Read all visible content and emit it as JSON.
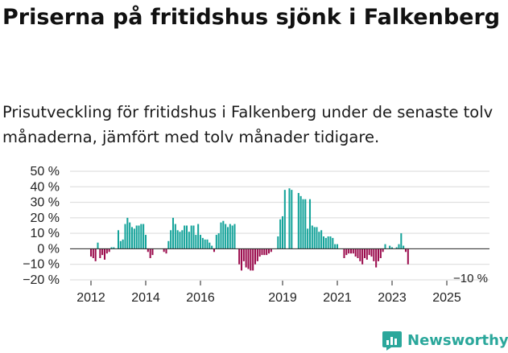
{
  "title": "Priserna på fritidshus sjönk i Falkenberg",
  "subtitle": "Prisutveckling för fritidshus i Falkenberg under de senaste tolv månaderna, jämfört med tolv månader tidigare.",
  "brand": {
    "name": "Newsworthy",
    "color": "#2aa79b"
  },
  "colors": {
    "positive": "#14a39a",
    "negative": "#9b0c4d",
    "grid": "#d9d9d9",
    "axis": "#222222"
  },
  "chart_data": {
    "type": "bar",
    "title": "Priserna på fritidshus sjönk i Falkenberg",
    "xlabel": "",
    "ylabel": "",
    "ylim": [
      -20,
      50
    ],
    "y_ticks": [
      {
        "value": 50,
        "label": "50 %"
      },
      {
        "value": 40,
        "label": "40 %"
      },
      {
        "value": 30,
        "label": "30 %"
      },
      {
        "value": 20,
        "label": "20 %"
      },
      {
        "value": 10,
        "label": "10 %"
      },
      {
        "value": 0,
        "label": "0 %"
      },
      {
        "value": -10,
        "label": "−10 %"
      },
      {
        "value": -20,
        "label": "−20 %"
      }
    ],
    "x_ticks": [
      "2012",
      "2014",
      "2016",
      "2019",
      "2021",
      "2023",
      "2025"
    ],
    "x_tick_positions": [
      2012,
      2014,
      2016,
      2019,
      2021,
      2023,
      2025
    ],
    "x_start": 2012,
    "x_step": 0.08333,
    "annotation": {
      "label": "−10 %",
      "value": -10
    },
    "values": [
      -5,
      -6,
      -8,
      4,
      -6,
      -4,
      -7,
      -3,
      -2,
      1,
      1,
      0,
      12,
      5,
      6,
      16,
      20,
      17,
      14,
      13,
      15,
      15,
      16,
      16,
      9,
      -2,
      -6,
      -4,
      0,
      0,
      0,
      0,
      -2,
      -3,
      5,
      12,
      20,
      16,
      12,
      11,
      12,
      15,
      15,
      11,
      15,
      15,
      9,
      16,
      9,
      7,
      6,
      6,
      4,
      2,
      -2,
      9,
      10,
      17,
      18,
      16,
      14,
      16,
      15,
      16,
      0,
      -10,
      -14,
      -8,
      -12,
      -13,
      -14,
      -14,
      -10,
      -8,
      -5,
      -4,
      -4,
      -4,
      -3,
      -2,
      0,
      0,
      8,
      19,
      21,
      38,
      0,
      39,
      38,
      0,
      0,
      36,
      34,
      32,
      32,
      13,
      32,
      15,
      14,
      14,
      11,
      12,
      8,
      7,
      8,
      8,
      7,
      3,
      3,
      0,
      0,
      -6,
      -4,
      -3,
      -3,
      -3,
      -5,
      -6,
      -8,
      -10,
      -6,
      -7,
      -4,
      -5,
      -8,
      -12,
      -8,
      -6,
      -2,
      3,
      0,
      2,
      1,
      0,
      1,
      3,
      10,
      2,
      -2,
      -10
    ]
  }
}
